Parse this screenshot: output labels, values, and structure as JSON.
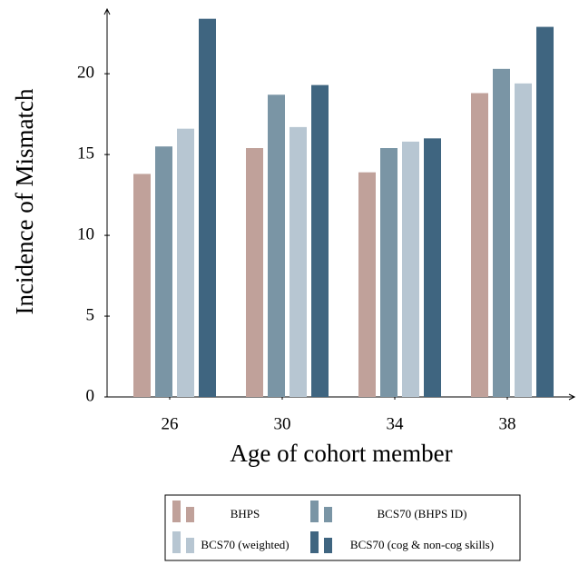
{
  "chart_data": {
    "type": "bar",
    "xlabel": "Age of cohort member",
    "ylabel": "Incidence of Mismatch",
    "categories": [
      "26",
      "30",
      "34",
      "38"
    ],
    "series": [
      {
        "name": "BHPS",
        "color": "#c0a19a",
        "values": [
          13.8,
          15.4,
          13.9,
          18.8
        ]
      },
      {
        "name": "BCS70 (BHPS ID)",
        "color": "#7a95a5",
        "values": [
          15.5,
          18.7,
          15.4,
          20.3
        ]
      },
      {
        "name": "BCS70 (weighted)",
        "color": "#b7c6d2",
        "values": [
          16.6,
          16.7,
          15.8,
          19.4
        ]
      },
      {
        "name": "BCS70 (cog & non-cog skills)",
        "color": "#3f6580",
        "values": [
          23.4,
          19.3,
          16.0,
          22.9
        ]
      }
    ],
    "ylim": [
      0,
      24
    ],
    "yticks": [
      0,
      5,
      10,
      15,
      20
    ]
  }
}
